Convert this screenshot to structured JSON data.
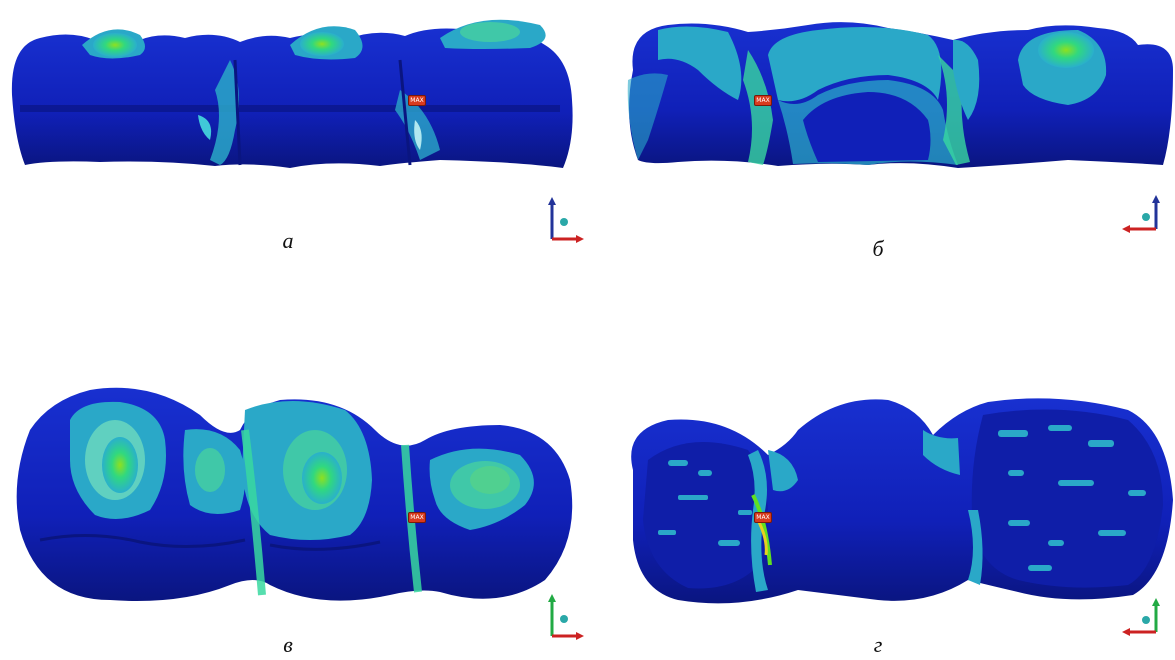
{
  "panels": [
    {
      "id": "a",
      "caption": "а",
      "view": "side",
      "probe_label": "MAX"
    },
    {
      "id": "b",
      "caption": "б",
      "view": "side-opposite",
      "probe_label": "MAX"
    },
    {
      "id": "c",
      "caption": "в",
      "view": "occlusal",
      "probe_label": "MAX"
    },
    {
      "id": "d",
      "caption": "г",
      "view": "bottom",
      "probe_label": "MAX"
    }
  ],
  "colors": {
    "low": "#1020b8",
    "low_dark": "#0a1580",
    "mid": "#2aa8c8",
    "mid_light": "#40c8d8",
    "high": "#38d890",
    "peak": "#60e020",
    "probe": "#d83a1e"
  }
}
